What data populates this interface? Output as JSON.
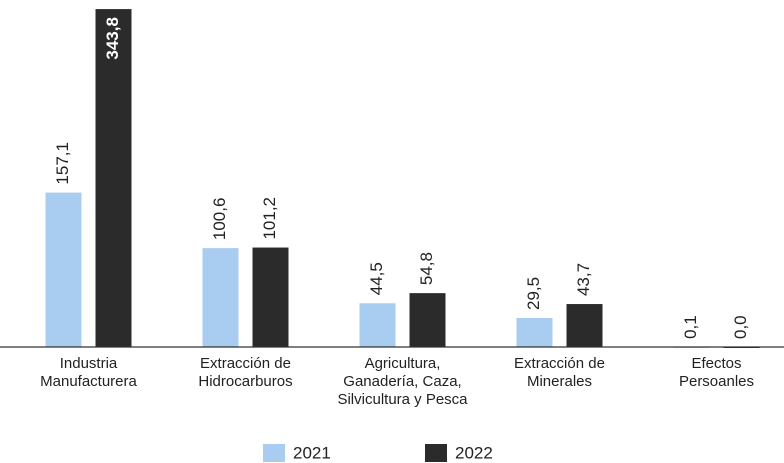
{
  "chart_data": {
    "type": "bar",
    "categories": [
      "Industria\nManufacturera",
      "Extracción de\nHidrocarburos",
      "Agricultura,\nGanadería, Caza,\nSilvicultura y Pesca",
      "Extracción de\nMinerales",
      "Efectos\nPersoanles"
    ],
    "series": [
      {
        "name": "2021",
        "color": "#a9cdf0",
        "values": [
          157.1,
          100.6,
          44.5,
          29.5,
          0.1
        ],
        "value_labels": [
          "157,1",
          "100,6",
          "44,5",
          "29,5",
          "0,1"
        ]
      },
      {
        "name": "2022",
        "color": "#2b2b2b",
        "values": [
          343.8,
          101.2,
          54.8,
          43.7,
          0.0
        ],
        "value_labels": [
          "343,8",
          "101,2",
          "54,8",
          "43,7",
          "0,0"
        ]
      }
    ],
    "ylim": [
      0,
      350
    ],
    "legend": "bottom"
  }
}
